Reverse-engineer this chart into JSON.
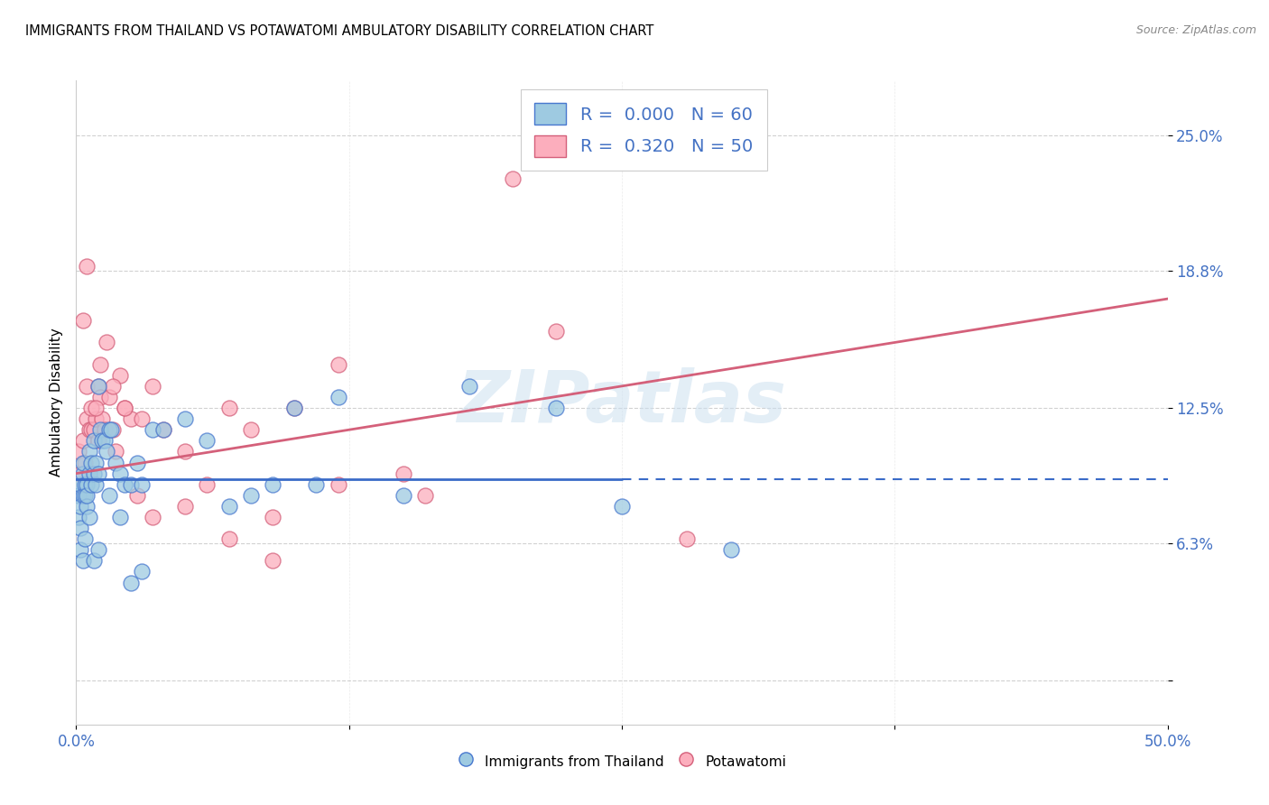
{
  "title": "IMMIGRANTS FROM THAILAND VS POTAWATOMI AMBULATORY DISABILITY CORRELATION CHART",
  "source": "Source: ZipAtlas.com",
  "ylabel": "Ambulatory Disability",
  "xlim": [
    0.0,
    50.0
  ],
  "ylim": [
    -2.0,
    27.5
  ],
  "ytick_vals": [
    0.0,
    6.3,
    12.5,
    18.8,
    25.0
  ],
  "ytick_labels": [
    "",
    "6.3%",
    "12.5%",
    "18.8%",
    "25.0%"
  ],
  "xtick_vals": [
    0.0,
    12.5,
    25.0,
    37.5,
    50.0
  ],
  "xtick_labels": [
    "0.0%",
    "",
    "",
    "",
    "50.0%"
  ],
  "legend_label1": "Immigrants from Thailand",
  "legend_label2": "Potawatomi",
  "color_blue": "#9ecae1",
  "color_pink": "#fcaebd",
  "edge_blue": "#4878cf",
  "edge_pink": "#d45f7a",
  "line_blue_color": "#3a6bc8",
  "line_pink_color": "#d4607a",
  "watermark": "ZIPatlas",
  "blue_x": [
    0.1,
    0.1,
    0.2,
    0.2,
    0.2,
    0.3,
    0.3,
    0.3,
    0.4,
    0.4,
    0.5,
    0.5,
    0.5,
    0.6,
    0.6,
    0.7,
    0.7,
    0.8,
    0.8,
    0.9,
    0.9,
    1.0,
    1.0,
    1.1,
    1.2,
    1.3,
    1.4,
    1.5,
    1.6,
    1.8,
    2.0,
    2.2,
    2.5,
    2.8,
    3.0,
    3.5,
    4.0,
    5.0,
    6.0,
    7.0,
    8.0,
    9.0,
    10.0,
    11.0,
    12.0,
    15.0,
    18.0,
    22.0,
    25.0,
    30.0,
    0.2,
    0.3,
    0.4,
    0.6,
    0.8,
    1.0,
    1.5,
    2.0,
    2.5,
    3.0
  ],
  "blue_y": [
    8.5,
    7.5,
    8.0,
    7.0,
    9.0,
    8.5,
    9.5,
    10.0,
    9.0,
    8.5,
    9.0,
    8.0,
    8.5,
    9.5,
    10.5,
    9.0,
    10.0,
    11.0,
    9.5,
    9.0,
    10.0,
    13.5,
    9.5,
    11.5,
    11.0,
    11.0,
    10.5,
    11.5,
    11.5,
    10.0,
    9.5,
    9.0,
    9.0,
    10.0,
    9.0,
    11.5,
    11.5,
    12.0,
    11.0,
    8.0,
    8.5,
    9.0,
    12.5,
    9.0,
    13.0,
    8.5,
    13.5,
    12.5,
    8.0,
    6.0,
    6.0,
    5.5,
    6.5,
    7.5,
    5.5,
    6.0,
    8.5,
    7.5,
    4.5,
    5.0
  ],
  "pink_x": [
    0.1,
    0.2,
    0.3,
    0.4,
    0.5,
    0.5,
    0.6,
    0.7,
    0.8,
    0.9,
    1.0,
    1.0,
    1.1,
    1.2,
    1.3,
    1.5,
    1.7,
    1.8,
    2.0,
    2.2,
    2.5,
    3.0,
    3.5,
    4.0,
    5.0,
    6.0,
    7.0,
    8.0,
    9.0,
    10.0,
    12.0,
    15.0,
    20.0,
    0.3,
    0.5,
    0.7,
    0.9,
    1.1,
    1.4,
    1.7,
    2.2,
    2.8,
    3.5,
    5.0,
    7.0,
    9.0,
    12.0,
    16.0,
    22.0,
    28.0
  ],
  "pink_y": [
    10.5,
    9.5,
    11.0,
    10.0,
    12.0,
    13.5,
    11.5,
    11.5,
    11.5,
    12.0,
    13.5,
    11.0,
    13.0,
    12.0,
    11.5,
    13.0,
    11.5,
    10.5,
    14.0,
    12.5,
    12.0,
    12.0,
    13.5,
    11.5,
    10.5,
    9.0,
    12.5,
    11.5,
    7.5,
    12.5,
    14.5,
    9.5,
    23.0,
    16.5,
    19.0,
    12.5,
    12.5,
    14.5,
    15.5,
    13.5,
    12.5,
    8.5,
    7.5,
    8.0,
    6.5,
    5.5,
    9.0,
    8.5,
    16.0,
    6.5
  ]
}
